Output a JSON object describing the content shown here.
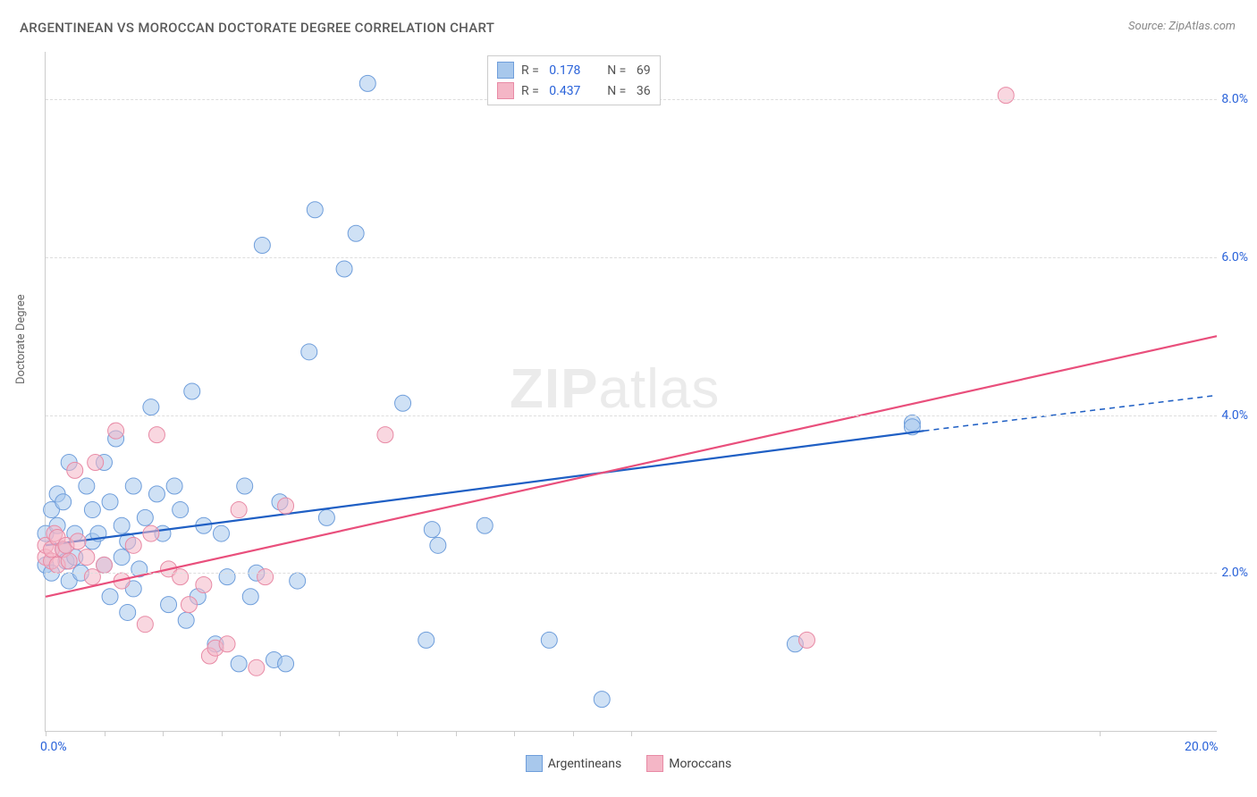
{
  "title": "ARGENTINEAN VS MOROCCAN DOCTORATE DEGREE CORRELATION CHART",
  "source": "Source: ZipAtlas.com",
  "ylabel": "Doctorate Degree",
  "watermark_a": "ZIP",
  "watermark_b": "atlas",
  "xlim": [
    0,
    20
  ],
  "ylim": [
    0,
    8.6
  ],
  "x_ticks": [
    0,
    1,
    2,
    3,
    4,
    5,
    6,
    7,
    8,
    9,
    10,
    18
  ],
  "x_tick_labels": {
    "0": "0.0%",
    "20": "20.0%"
  },
  "y_gridlines": [
    2,
    4,
    6,
    8
  ],
  "y_tick_labels": {
    "2": "2.0%",
    "4": "4.0%",
    "6": "6.0%",
    "8": "8.0%"
  },
  "series": [
    {
      "name": "Argentineans",
      "fill": "#a8c8ec",
      "stroke": "#6f9edb",
      "fill_opacity": 0.55,
      "marker_r": 9,
      "line_color": "#1f5fc4",
      "line_width": 2.2,
      "R": "0.178",
      "N": "69",
      "trend": {
        "x1": 0,
        "y1": 2.35,
        "x2": 15,
        "y2": 3.8
      },
      "trend_dash": {
        "x1": 15,
        "y1": 3.8,
        "x2": 20,
        "y2": 4.25
      },
      "points": [
        [
          0.0,
          2.1
        ],
        [
          0.0,
          2.5
        ],
        [
          0.1,
          2.8
        ],
        [
          0.1,
          2.0
        ],
        [
          0.2,
          3.0
        ],
        [
          0.2,
          2.6
        ],
        [
          0.3,
          2.3
        ],
        [
          0.3,
          2.9
        ],
        [
          0.35,
          2.15
        ],
        [
          0.4,
          3.4
        ],
        [
          0.4,
          1.9
        ],
        [
          0.5,
          2.5
        ],
        [
          0.5,
          2.2
        ],
        [
          0.6,
          2.0
        ],
        [
          0.7,
          3.1
        ],
        [
          0.8,
          2.4
        ],
        [
          0.8,
          2.8
        ],
        [
          0.9,
          2.5
        ],
        [
          1.0,
          2.1
        ],
        [
          1.0,
          3.4
        ],
        [
          1.1,
          2.9
        ],
        [
          1.1,
          1.7
        ],
        [
          1.2,
          3.7
        ],
        [
          1.3,
          2.2
        ],
        [
          1.3,
          2.6
        ],
        [
          1.4,
          1.5
        ],
        [
          1.4,
          2.4
        ],
        [
          1.5,
          3.1
        ],
        [
          1.5,
          1.8
        ],
        [
          1.6,
          2.05
        ],
        [
          1.7,
          2.7
        ],
        [
          1.8,
          4.1
        ],
        [
          1.9,
          3.0
        ],
        [
          2.0,
          2.5
        ],
        [
          2.1,
          1.6
        ],
        [
          2.2,
          3.1
        ],
        [
          2.3,
          2.8
        ],
        [
          2.4,
          1.4
        ],
        [
          2.5,
          4.3
        ],
        [
          2.6,
          1.7
        ],
        [
          2.7,
          2.6
        ],
        [
          2.9,
          1.1
        ],
        [
          3.0,
          2.5
        ],
        [
          3.1,
          1.95
        ],
        [
          3.3,
          0.85
        ],
        [
          3.4,
          3.1
        ],
        [
          3.5,
          1.7
        ],
        [
          3.6,
          2.0
        ],
        [
          3.9,
          0.9
        ],
        [
          4.0,
          2.9
        ],
        [
          4.1,
          0.85
        ],
        [
          4.3,
          1.9
        ],
        [
          4.5,
          4.8
        ],
        [
          4.6,
          6.6
        ],
        [
          4.8,
          2.7
        ],
        [
          5.1,
          5.85
        ],
        [
          5.3,
          6.3
        ],
        [
          5.5,
          8.2
        ],
        [
          6.1,
          4.15
        ],
        [
          6.5,
          1.15
        ],
        [
          6.7,
          2.35
        ],
        [
          6.6,
          2.55
        ],
        [
          7.5,
          2.6
        ],
        [
          8.6,
          1.15
        ],
        [
          9.5,
          0.4
        ],
        [
          12.8,
          1.1
        ],
        [
          14.8,
          3.9
        ],
        [
          14.8,
          3.85
        ],
        [
          3.7,
          6.15
        ]
      ]
    },
    {
      "name": "Moroccans",
      "fill": "#f4b6c6",
      "stroke": "#e88aa5",
      "fill_opacity": 0.55,
      "marker_r": 9,
      "line_color": "#e94f7c",
      "line_width": 2.2,
      "R": "0.437",
      "N": "36",
      "trend": {
        "x1": 0,
        "y1": 1.7,
        "x2": 20,
        "y2": 5.0
      },
      "points": [
        [
          0.0,
          2.2
        ],
        [
          0.0,
          2.35
        ],
        [
          0.1,
          2.15
        ],
        [
          0.1,
          2.3
        ],
        [
          0.15,
          2.5
        ],
        [
          0.2,
          2.1
        ],
        [
          0.2,
          2.45
        ],
        [
          0.3,
          2.3
        ],
        [
          0.35,
          2.35
        ],
        [
          0.4,
          2.15
        ],
        [
          0.5,
          3.3
        ],
        [
          0.55,
          2.4
        ],
        [
          0.7,
          2.2
        ],
        [
          0.8,
          1.95
        ],
        [
          0.85,
          3.4
        ],
        [
          1.0,
          2.1
        ],
        [
          1.2,
          3.8
        ],
        [
          1.3,
          1.9
        ],
        [
          1.5,
          2.35
        ],
        [
          1.7,
          1.35
        ],
        [
          1.8,
          2.5
        ],
        [
          1.9,
          3.75
        ],
        [
          2.1,
          2.05
        ],
        [
          2.3,
          1.95
        ],
        [
          2.45,
          1.6
        ],
        [
          2.7,
          1.85
        ],
        [
          2.8,
          0.95
        ],
        [
          2.9,
          1.05
        ],
        [
          3.1,
          1.1
        ],
        [
          3.3,
          2.8
        ],
        [
          3.6,
          0.8
        ],
        [
          3.75,
          1.95
        ],
        [
          4.1,
          2.85
        ],
        [
          5.8,
          3.75
        ],
        [
          13.0,
          1.15
        ],
        [
          16.4,
          8.05
        ]
      ]
    }
  ]
}
